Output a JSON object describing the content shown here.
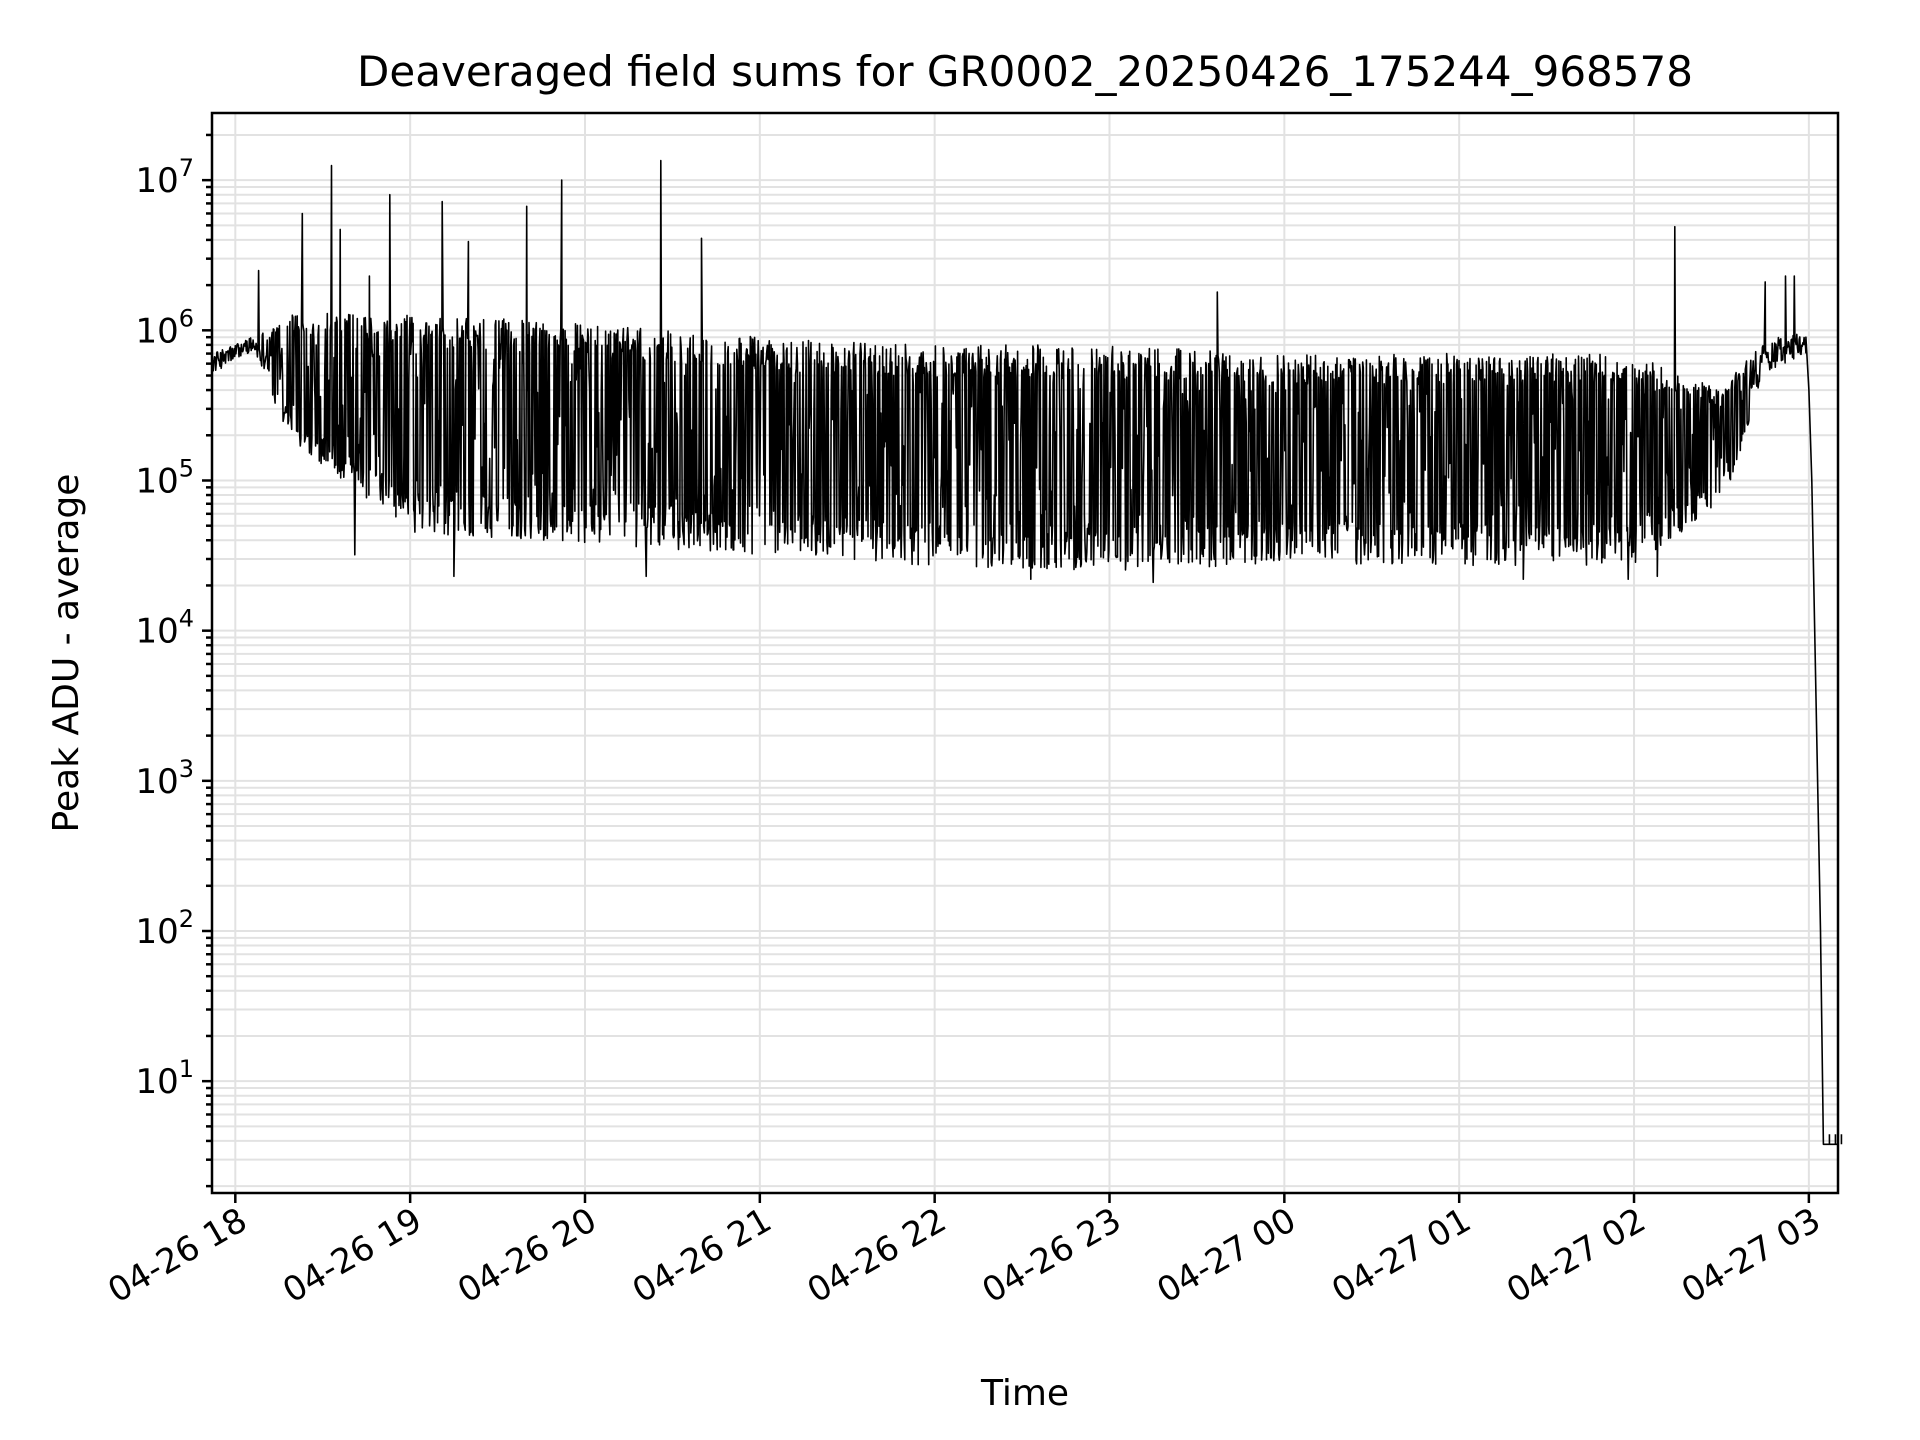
{
  "chart_data": {
    "type": "line",
    "title": "Deaveraged field sums for GR0002_20250426_175244_968578",
    "xlabel": "Time",
    "ylabel": "Peak ADU - average",
    "yscale": "log",
    "grid": true,
    "x_range": [
      "04-26 17:52",
      "04-27 03:10"
    ],
    "ylim": [
      1.8,
      28000000
    ],
    "x_ticks": [
      "04-26 18",
      "04-26 19",
      "04-26 20",
      "04-26 21",
      "04-26 22",
      "04-26 23",
      "04-27 00",
      "04-27 01",
      "04-27 02",
      "04-27 03"
    ],
    "y_ticks": [
      {
        "base": "10",
        "exp": "1",
        "value": 10
      },
      {
        "base": "10",
        "exp": "2",
        "value": 100
      },
      {
        "base": "10",
        "exp": "3",
        "value": 1000
      },
      {
        "base": "10",
        "exp": "4",
        "value": 10000
      },
      {
        "base": "10",
        "exp": "5",
        "value": 100000
      },
      {
        "base": "10",
        "exp": "6",
        "value": 1000000
      },
      {
        "base": "10",
        "exp": "7",
        "value": 10000000
      }
    ],
    "series": [
      {
        "color": "#000000",
        "baseline_profile": [
          {
            "t": "04-26 17:52",
            "upper": 700000,
            "lower": 450000
          },
          {
            "t": "04-26 18:05",
            "upper": 900000,
            "lower": 650000
          },
          {
            "t": "04-26 18:20",
            "upper": 1300000,
            "lower": 180000
          },
          {
            "t": "04-26 19:00",
            "upper": 1300000,
            "lower": 45000
          },
          {
            "t": "04-26 20:00",
            "upper": 1100000,
            "lower": 38000
          },
          {
            "t": "04-26 21:00",
            "upper": 900000,
            "lower": 32000
          },
          {
            "t": "04-26 22:00",
            "upper": 800000,
            "lower": 27000
          },
          {
            "t": "04-26 23:00",
            "upper": 800000,
            "lower": 25000
          },
          {
            "t": "04-27 00:00",
            "upper": 700000,
            "lower": 28000
          },
          {
            "t": "04-27 01:00",
            "upper": 700000,
            "lower": 27000
          },
          {
            "t": "04-27 02:00",
            "upper": 700000,
            "lower": 27000
          },
          {
            "t": "04-27 02:30",
            "upper": 400000,
            "lower": 70000
          },
          {
            "t": "04-27 02:45",
            "upper": 900000,
            "lower": 400000
          },
          {
            "t": "04-27 02:58",
            "upper": 950000,
            "lower": 600000
          }
        ],
        "spikes": [
          {
            "t": "04-26 18:08",
            "value": 2500000
          },
          {
            "t": "04-26 18:23",
            "value": 6000000
          },
          {
            "t": "04-26 18:33",
            "value": 12500000
          },
          {
            "t": "04-26 18:36",
            "value": 4700000
          },
          {
            "t": "04-26 18:46",
            "value": 2300000
          },
          {
            "t": "04-26 18:53",
            "value": 8000000
          },
          {
            "t": "04-26 19:11",
            "value": 7200000
          },
          {
            "t": "04-26 19:20",
            "value": 3900000
          },
          {
            "t": "04-26 19:40",
            "value": 6700000
          },
          {
            "t": "04-26 19:52",
            "value": 10000000
          },
          {
            "t": "04-26 20:26",
            "value": 13500000
          },
          {
            "t": "04-26 20:40",
            "value": 4100000
          },
          {
            "t": "04-26 23:37",
            "value": 1800000
          },
          {
            "t": "04-27 02:14",
            "value": 4900000
          },
          {
            "t": "04-27 02:45",
            "value": 2100000
          },
          {
            "t": "04-27 02:52",
            "value": 2300000
          },
          {
            "t": "04-27 02:55",
            "value": 2300000
          }
        ],
        "dips": [
          {
            "t": "04-26 18:41",
            "value": 32000
          },
          {
            "t": "04-26 19:15",
            "value": 23000
          },
          {
            "t": "04-26 20:21",
            "value": 23000
          },
          {
            "t": "04-26 22:33",
            "value": 22000
          },
          {
            "t": "04-26 23:15",
            "value": 21000
          },
          {
            "t": "04-27 01:22",
            "value": 22000
          },
          {
            "t": "04-27 01:58",
            "value": 22000
          },
          {
            "t": "04-27 02:08",
            "value": 23000
          }
        ],
        "tail": [
          {
            "t": "04-27 02:59",
            "value": 900000
          },
          {
            "t": "04-27 03:00",
            "value": 400000
          },
          {
            "t": "04-27 03:01",
            "value": 100000
          },
          {
            "t": "04-27 03:02",
            "value": 10000
          },
          {
            "t": "04-27 03:03",
            "value": 1000
          },
          {
            "t": "04-27 03:04",
            "value": 100
          },
          {
            "t": "04-27 03:05",
            "value": 3.8
          },
          {
            "t": "04-27 03:10",
            "value": 3.8
          }
        ]
      }
    ]
  }
}
